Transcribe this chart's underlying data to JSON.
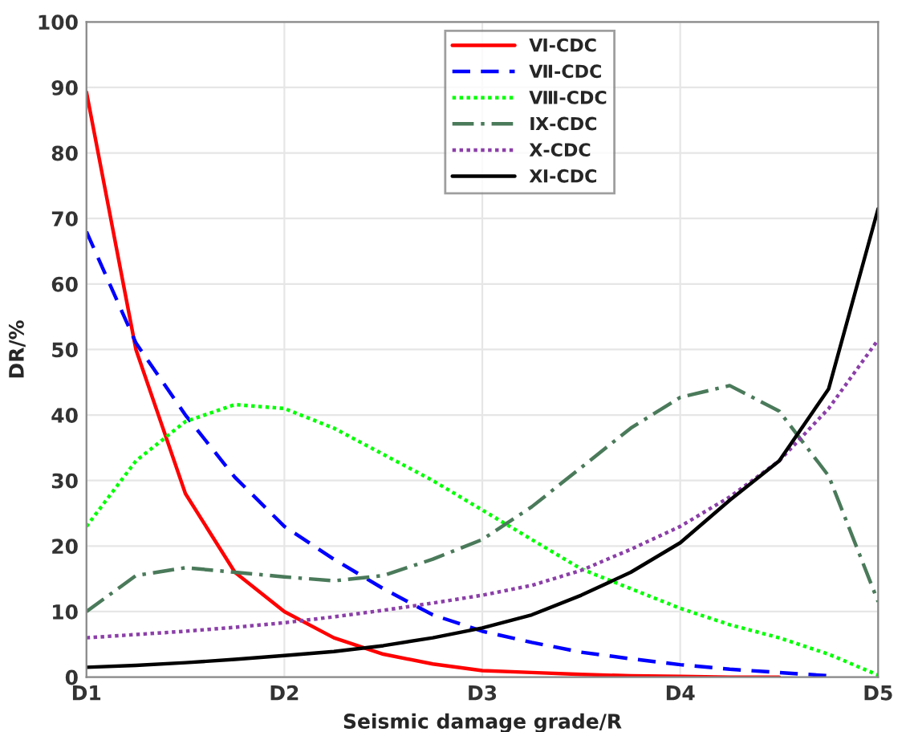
{
  "chart_data": {
    "type": "line",
    "xlabel": "Seismic damage grade/R",
    "ylabel": "DR/%",
    "ylim": [
      0,
      100
    ],
    "categories": [
      "D1",
      null,
      null,
      null,
      "D2",
      null,
      null,
      null,
      "D3",
      null,
      null,
      null,
      "D4",
      null,
      null,
      null,
      "D5"
    ],
    "yticks": [
      0,
      10,
      20,
      30,
      40,
      50,
      60,
      70,
      80,
      90,
      100
    ],
    "grid": true,
    "legend": "top",
    "marker": "none",
    "series": [
      {
        "name": "Ⅵ-CDC",
        "color": "#ff0000",
        "line_style": "solid",
        "values": [
          89.3,
          50,
          28,
          16,
          10,
          6,
          3.5,
          2,
          1,
          0.7,
          0.4,
          0.2,
          0.1,
          0,
          0,
          null,
          null
        ]
      },
      {
        "name": "Ⅶ-CDC",
        "color": "#0000ff",
        "line_style": "dashed",
        "values": [
          68,
          51,
          40,
          30.5,
          23,
          18,
          13.5,
          9.5,
          7,
          5.3,
          3.8,
          2.8,
          1.9,
          1.2,
          0.7,
          0.2,
          null
        ]
      },
      {
        "name": "Ⅷ-CDC",
        "color": "#00ff00",
        "line_style": "dotted",
        "values": [
          23,
          33,
          39,
          41.6,
          41,
          38,
          34,
          30,
          25.5,
          21,
          16.5,
          13.5,
          10.5,
          8,
          6,
          3.5,
          0.3
        ]
      },
      {
        "name": "Ⅸ-CDC",
        "color": "#4a7a5a",
        "line_style": "dashdot",
        "values": [
          10,
          15.5,
          16.7,
          16,
          15.3,
          14.7,
          15.5,
          18,
          21,
          26,
          32,
          38,
          42.7,
          44.5,
          40.6,
          30.7,
          11.5
        ]
      },
      {
        "name": "Ⅹ-CDC",
        "color": "#8b3fa8",
        "line_style": "dotted",
        "values": [
          6,
          6.5,
          7,
          7.6,
          8.3,
          9.2,
          10.2,
          11.3,
          12.5,
          14,
          16.3,
          19.5,
          23,
          27.5,
          33,
          41,
          51.5
        ]
      },
      {
        "name": "Ⅺ-CDC",
        "color": "#000000",
        "line_style": "solid",
        "values": [
          1.5,
          1.8,
          2.2,
          2.7,
          3.3,
          3.9,
          4.8,
          6,
          7.5,
          9.5,
          12.5,
          16,
          20.5,
          27,
          33,
          44,
          71.5
        ]
      }
    ]
  }
}
